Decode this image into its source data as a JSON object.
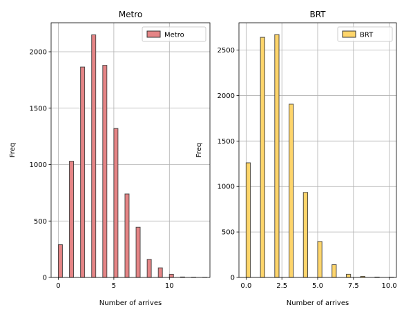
{
  "chart_data": [
    {
      "type": "bar",
      "title": "Metro",
      "xlabel": "Number of arrives",
      "ylabel": "Freq",
      "xlim": [
        -0.65,
        13.65
      ],
      "ylim": [
        0,
        2257
      ],
      "xticks": [
        0,
        5,
        10
      ],
      "xtick_labels": [
        "0",
        "5",
        "10"
      ],
      "yticks": [
        0,
        500,
        1000,
        1500,
        2000
      ],
      "ytick_labels": [
        "0",
        "500",
        "1000",
        "1500",
        "2000"
      ],
      "grid": true,
      "legend": "top-right",
      "bar_color": "#e58586",
      "series": [
        {
          "name": "Metro",
          "x": [
            0,
            1,
            2,
            3,
            4,
            5,
            6,
            7,
            8,
            9,
            10,
            11,
            12,
            13
          ],
          "values": [
            290,
            1030,
            1865,
            2150,
            1880,
            1320,
            740,
            445,
            160,
            85,
            28,
            4,
            2,
            1
          ]
        }
      ]
    },
    {
      "type": "bar",
      "title": "BRT",
      "xlabel": "Number of arrives",
      "ylabel": "Freq",
      "xlim": [
        -0.5,
        10.5
      ],
      "ylim": [
        0,
        2800
      ],
      "xticks": [
        0,
        2.5,
        5,
        7.5,
        10
      ],
      "xtick_labels": [
        "0.0",
        "2.5",
        "5.0",
        "7.5",
        "10.0"
      ],
      "yticks": [
        0,
        500,
        1000,
        1500,
        2000,
        2500
      ],
      "ytick_labels": [
        "0",
        "500",
        "1000",
        "1500",
        "2000",
        "2500"
      ],
      "grid": true,
      "legend": "top-right",
      "bar_color": "#fed56b",
      "series": [
        {
          "name": "BRT",
          "x": [
            0,
            1,
            2,
            3,
            4,
            5,
            6,
            7,
            8,
            9,
            10
          ],
          "values": [
            1260,
            2640,
            2670,
            1905,
            935,
            395,
            140,
            35,
            12,
            4,
            2
          ]
        }
      ]
    }
  ]
}
